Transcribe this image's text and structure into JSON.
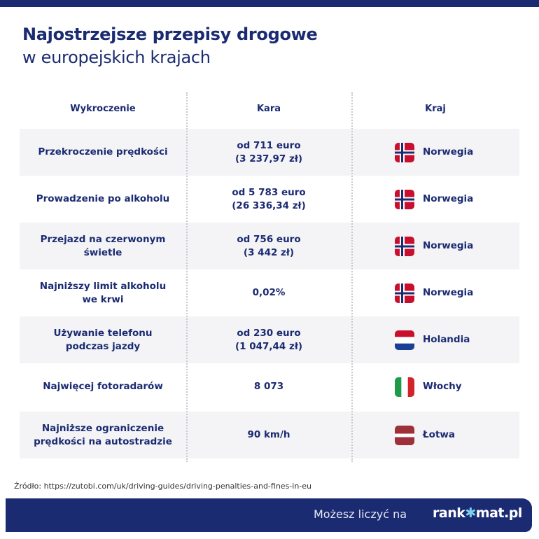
{
  "title": {
    "line1": "Najostrzejsze przepisy drogowe",
    "line2": "w europejskich krajach"
  },
  "headers": [
    "Wykroczenie",
    "Kara",
    "Kraj"
  ],
  "rows": [
    {
      "offense": "Przekroczenie prędkości",
      "penalty": "od 711 euro\n(3 237,97 zł)",
      "country": "Norwegia",
      "flag": "norway"
    },
    {
      "offense": "Prowadzenie po alkoholu",
      "penalty": "od 5 783 euro\n(26 336,34 zł)",
      "country": "Norwegia",
      "flag": "norway"
    },
    {
      "offense": "Przejazd na czerwonym\nświetle",
      "penalty": "od 756 euro\n(3 442 zł)",
      "country": "Norwegia",
      "flag": "norway"
    },
    {
      "offense": "Najniższy limit alkoholu\nwe krwi",
      "penalty": "0,02%",
      "country": "Norwegia",
      "flag": "norway"
    },
    {
      "offense": "Używanie telefonu\npodczas jazdy",
      "penalty": "od 230 euro\n(1 047,44 zł)",
      "country": "Holandia",
      "flag": "netherlands"
    },
    {
      "offense": "Najwięcej fotoradarów",
      "penalty": "8 073",
      "country": "Włochy",
      "flag": "italy"
    },
    {
      "offense": "Najniższe ograniczenie\nprędkości na autostradzie",
      "penalty": "90 km/h",
      "country": "Łotwa",
      "flag": "latvia"
    }
  ],
  "source": "Źródło: https://zutobi.com/uk/driving-guides/driving-penalties-and-fines-in-eu",
  "footer": {
    "slogan": "Możesz liczyć na",
    "logo": "rankomat.pl"
  },
  "colors": {
    "navy": "#1b2b72",
    "row_grey": "#f4f4f6"
  }
}
